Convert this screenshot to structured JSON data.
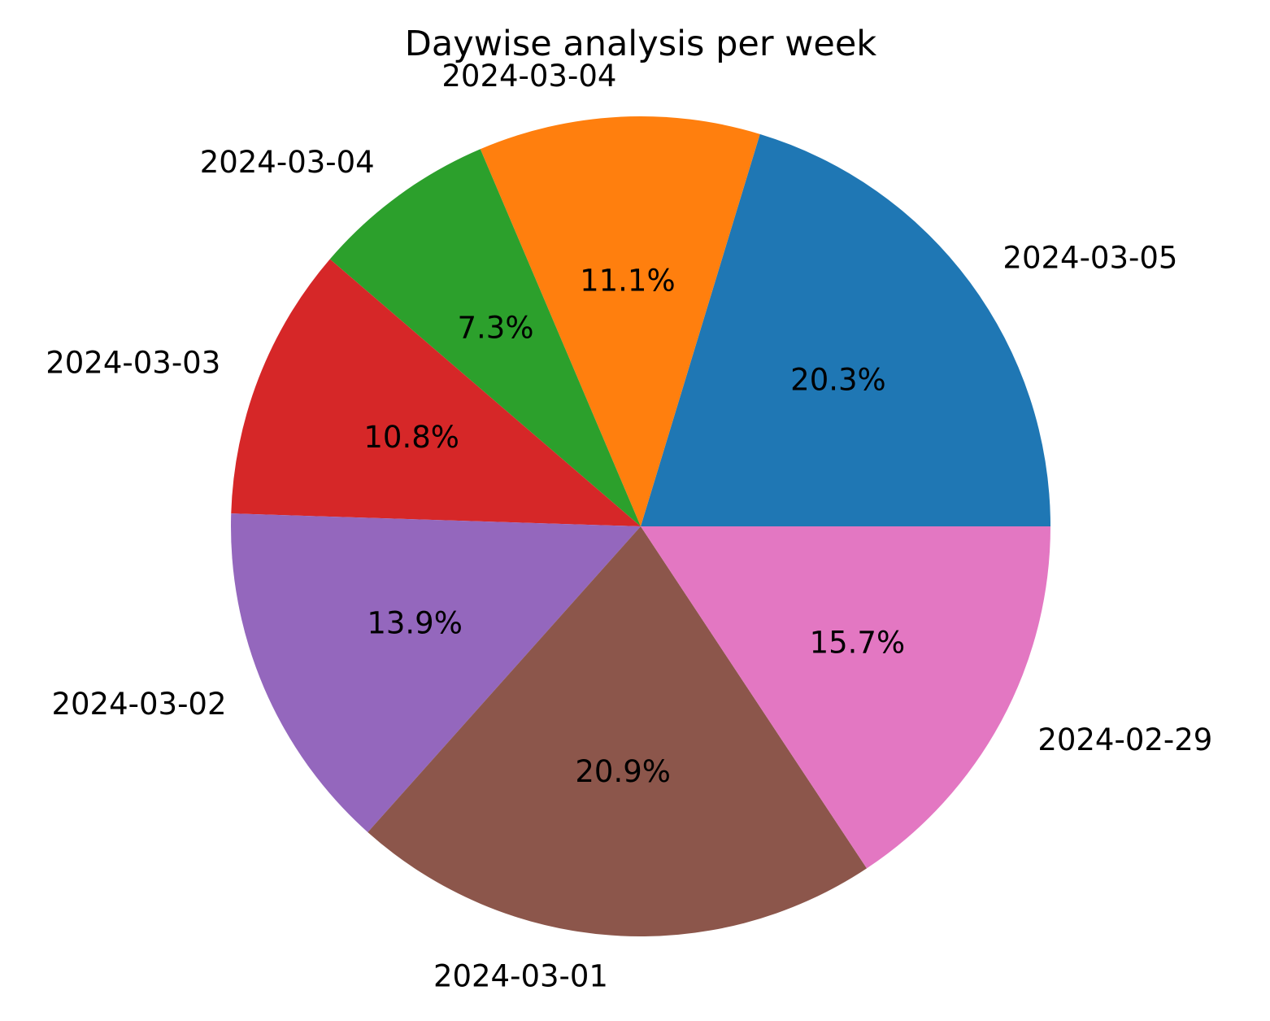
{
  "chart_data": {
    "type": "pie",
    "title": "Daywise analysis per week",
    "labels": [
      "2024-03-05",
      "2024-03-04",
      "2024-03-04",
      "2024-03-03",
      "2024-03-02",
      "2024-03-01",
      "2024-02-29"
    ],
    "values": [
      20.3,
      11.1,
      7.3,
      10.8,
      13.9,
      20.9,
      15.7
    ],
    "value_labels": [
      "20.3%",
      "11.1%",
      "7.3%",
      "10.8%",
      "13.9%",
      "20.9%",
      "15.7%"
    ],
    "colors": [
      "#1f77b4",
      "#ff7f0e",
      "#2ca02c",
      "#d62728",
      "#9467bd",
      "#8c564b",
      "#e377c2"
    ],
    "start_angle_deg": 0,
    "direction": "counterclockwise",
    "legend": "none"
  }
}
